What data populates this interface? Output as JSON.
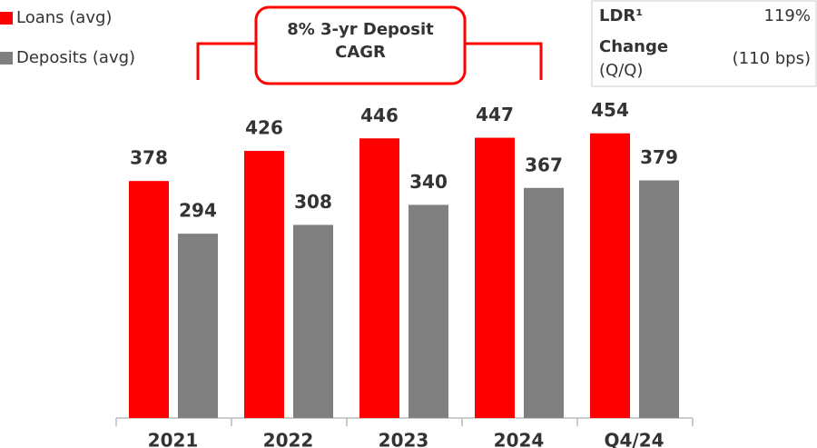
{
  "chart_data": {
    "type": "bar",
    "categories": [
      "2021",
      "2022",
      "2023",
      "2024",
      "Q4/24"
    ],
    "series": [
      {
        "name": "Loans (avg)",
        "color": "#ff0000",
        "values": [
          378,
          426,
          446,
          447,
          454
        ]
      },
      {
        "name": "Deposits (avg)",
        "color": "#808080",
        "values": [
          294,
          308,
          340,
          367,
          379
        ]
      }
    ],
    "annotation": [
      "8% 3-yr Deposit",
      "CAGR"
    ],
    "table": {
      "rows": [
        [
          "LDR¹",
          "119%"
        ],
        [
          "Change",
          "(Q/Q)",
          "(110 bps)"
        ]
      ]
    }
  }
}
